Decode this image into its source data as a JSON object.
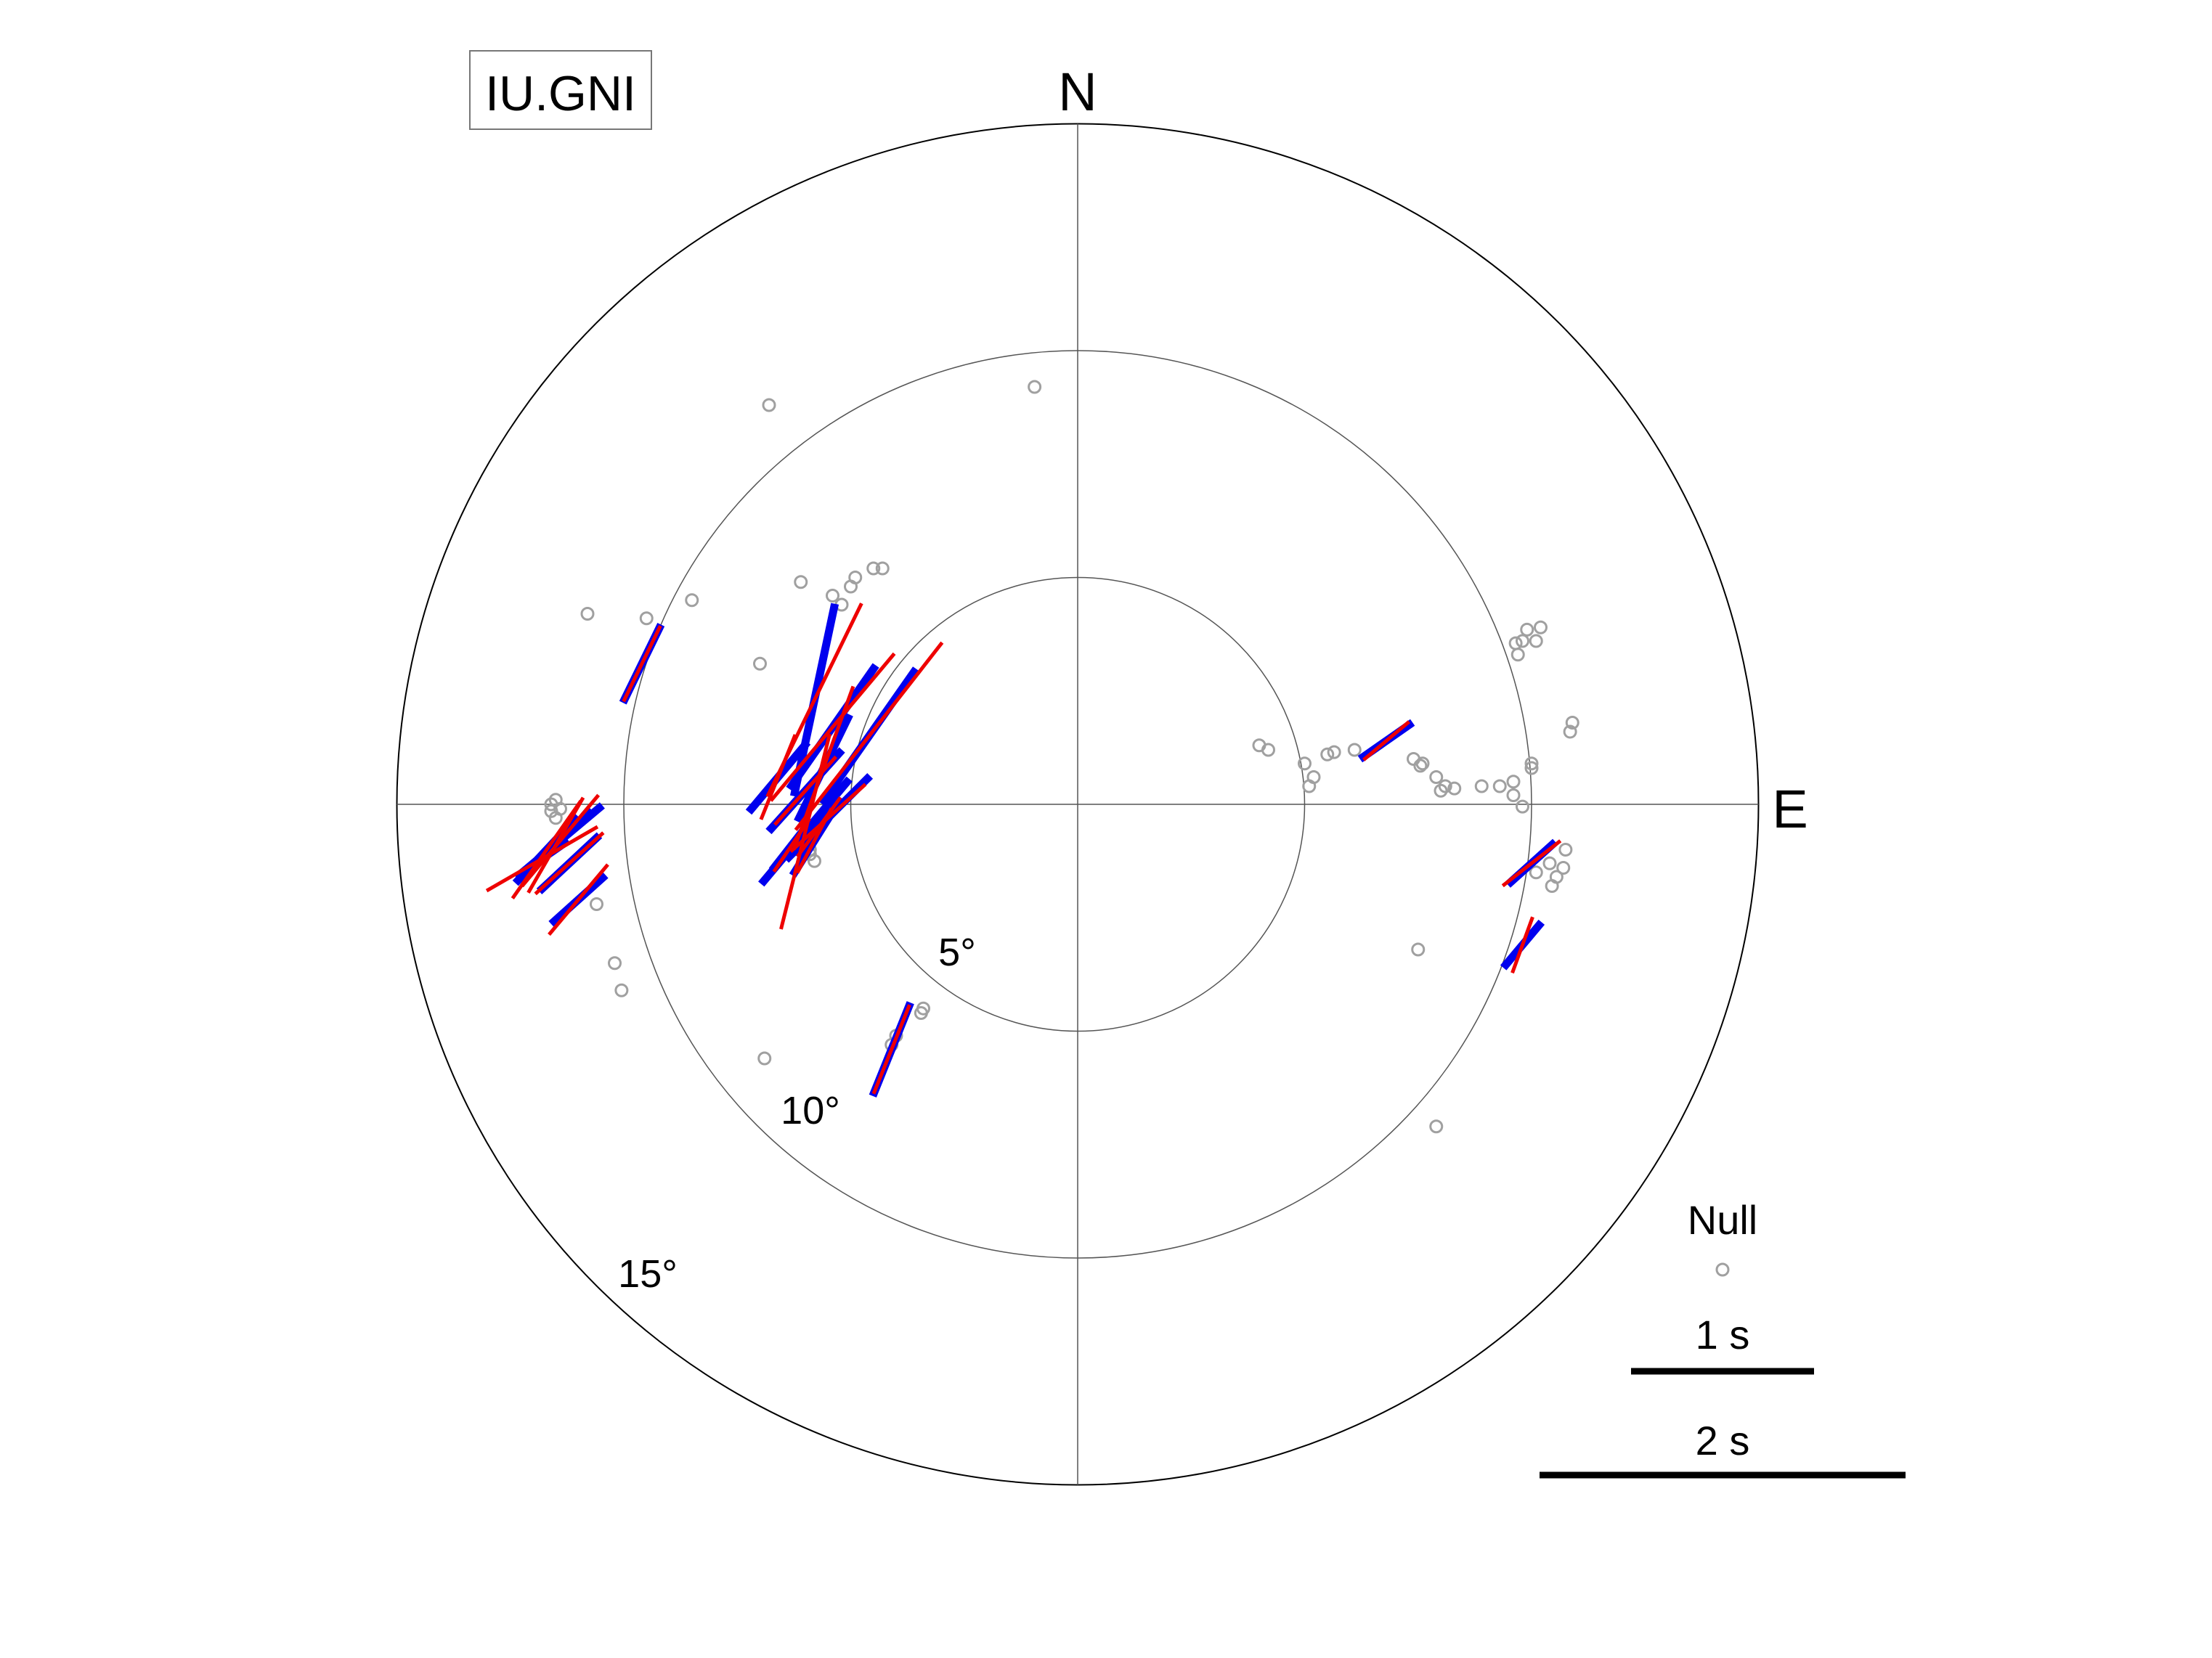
{
  "chart_data": {
    "type": "scatter",
    "title": "IU.GNI",
    "compass": {
      "north": "N",
      "east": "E"
    },
    "ring_labels": [
      "5°",
      "10°",
      "15°"
    ],
    "rings_deg": [
      5,
      10,
      15
    ],
    "legend": {
      "null_label": "Null",
      "scale_labels": [
        "1 s",
        "2 s"
      ],
      "scale_values_s": [
        1,
        2
      ]
    },
    "colors": {
      "null": "#a0a0a0",
      "measured": "#0000ee",
      "predicted": "#ee0000",
      "grid": "#555555"
    },
    "nulls": [
      [
        -6.8,
        8.8
      ],
      [
        -0.95,
        9.2
      ],
      [
        -10.8,
        4.2
      ],
      [
        -9.5,
        4.1
      ],
      [
        -8.5,
        4.5
      ],
      [
        -6.1,
        4.9
      ],
      [
        -5.4,
        4.6
      ],
      [
        -5.2,
        4.4
      ],
      [
        -5.0,
        4.8
      ],
      [
        -4.9,
        5.0
      ],
      [
        -4.5,
        5.2
      ],
      [
        -4.3,
        5.2
      ],
      [
        -7.0,
        3.1
      ],
      [
        -11.6,
        0.0
      ],
      [
        -11.6,
        -0.15
      ],
      [
        -11.5,
        -0.3
      ],
      [
        -11.4,
        -0.1
      ],
      [
        -11.5,
        0.1
      ],
      [
        -10.6,
        -2.2
      ],
      [
        -10.2,
        -3.5
      ],
      [
        -10.05,
        -4.1
      ],
      [
        -5.9,
        -1.1
      ],
      [
        -5.8,
        -1.25
      ],
      [
        -5.9,
        -1.0
      ],
      [
        -3.4,
        -4.5
      ],
      [
        -3.45,
        -4.6
      ],
      [
        -4.0,
        -5.1
      ],
      [
        -4.1,
        -5.3
      ],
      [
        -6.9,
        -5.6
      ],
      [
        4.0,
        1.3
      ],
      [
        4.2,
        1.2
      ],
      [
        5.0,
        0.9
      ],
      [
        5.2,
        0.6
      ],
      [
        5.5,
        1.1
      ],
      [
        5.65,
        1.15
      ],
      [
        6.1,
        1.2
      ],
      [
        5.1,
        0.4
      ],
      [
        7.4,
        1.0
      ],
      [
        7.55,
        0.85
      ],
      [
        7.6,
        0.9
      ],
      [
        7.9,
        0.6
      ],
      [
        8.0,
        0.3
      ],
      [
        8.1,
        0.4
      ],
      [
        8.3,
        0.35
      ],
      [
        8.9,
        0.4
      ],
      [
        9.3,
        0.4
      ],
      [
        9.6,
        0.2
      ],
      [
        9.8,
        -0.05
      ],
      [
        9.6,
        0.5
      ],
      [
        10.0,
        0.8
      ],
      [
        10.0,
        0.9
      ],
      [
        9.8,
        3.6
      ],
      [
        9.9,
        3.85
      ],
      [
        10.1,
        3.6
      ],
      [
        10.2,
        3.9
      ],
      [
        9.65,
        3.55
      ],
      [
        9.7,
        3.3
      ],
      [
        10.85,
        1.6
      ],
      [
        10.9,
        1.8
      ],
      [
        10.4,
        -1.3
      ],
      [
        10.55,
        -1.6
      ],
      [
        10.45,
        -1.8
      ],
      [
        10.7,
        -1.4
      ],
      [
        10.1,
        -1.5
      ],
      [
        10.75,
        -1.0
      ],
      [
        7.5,
        -3.2
      ],
      [
        7.9,
        -7.1
      ]
    ],
    "splits": [
      {
        "x": -9.6,
        "y": 3.1,
        "phi": 26,
        "dt": 0.95,
        "phi_pred": 26,
        "dt_pred": 0.92
      },
      {
        "x": -5.8,
        "y": 2.3,
        "phi": 12,
        "dt": 2.15,
        "phi_pred": 26,
        "dt_pred": 2.35
      },
      {
        "x": -5.4,
        "y": 1.7,
        "phi": 35,
        "dt": 1.65,
        "phi_pred": 40,
        "dt_pred": 2.1
      },
      {
        "x": -4.6,
        "y": 1.5,
        "phi": 35,
        "dt": 1.8,
        "phi_pred": 38,
        "dt_pred": 2.6
      },
      {
        "x": -5.6,
        "y": 0.8,
        "phi": 26,
        "dt": 1.3,
        "phi_pred": 20,
        "dt_pred": 1.9
      },
      {
        "x": -6.0,
        "y": -0.6,
        "phi": 40,
        "dt": 1.5,
        "phi_pred": 14,
        "dt_pred": 2.2
      },
      {
        "x": -6.6,
        "y": 0.6,
        "phi": 40,
        "dt": 1.0,
        "phi_pred": 22,
        "dt_pred": 1.0
      },
      {
        "x": -6.0,
        "y": 0.3,
        "phi": 42,
        "dt": 1.2,
        "phi_pred": 42,
        "dt_pred": 1.0
      },
      {
        "x": -5.5,
        "y": -0.3,
        "phi": 45,
        "dt": 1.3,
        "phi_pred": 48,
        "dt_pred": 1.1
      },
      {
        "x": -5.8,
        "y": -0.8,
        "phi": 32,
        "dt": 0.9,
        "phi_pred": 28,
        "dt_pred": 0.8
      },
      {
        "x": -6.3,
        "y": -0.9,
        "phi": 38,
        "dt": 0.7,
        "phi_pred": 34,
        "dt_pred": 0.7
      },
      {
        "x": -5.7,
        "y": -0.5,
        "phi": 33,
        "dt": 0.8,
        "phi_pred": 36,
        "dt_pred": 0.8
      },
      {
        "x": -11.5,
        "y": -0.9,
        "phi": 45,
        "dt": 1.1,
        "phi_pred": 30,
        "dt_pred": 1.2
      },
      {
        "x": -11.7,
        "y": -1.0,
        "phi": 43,
        "dt": 1.0,
        "phi_pred": 35,
        "dt_pred": 1.3
      },
      {
        "x": -11.4,
        "y": -0.8,
        "phi": 50,
        "dt": 1.2,
        "phi_pred": 40,
        "dt_pred": 1.3
      },
      {
        "x": -11.2,
        "y": -1.3,
        "phi": 47,
        "dt": 0.9,
        "phi_pred": 48,
        "dt_pred": 1.0
      },
      {
        "x": -11.8,
        "y": -1.2,
        "phi": 55,
        "dt": 0.7,
        "phi_pred": 60,
        "dt_pred": 1.4
      },
      {
        "x": -11.0,
        "y": -2.1,
        "phi": 48,
        "dt": 0.8,
        "phi_pred": 40,
        "dt_pred": 1.0
      },
      {
        "x": -4.1,
        "y": -5.4,
        "phi": 22,
        "dt": 1.1,
        "phi_pred": 22,
        "dt_pred": 1.05
      },
      {
        "x": 6.8,
        "y": 1.4,
        "phi": 55,
        "dt": 0.7,
        "phi_pred": 50,
        "dt_pred": 0.65
      },
      {
        "x": 10.0,
        "y": -1.3,
        "phi": 48,
        "dt": 0.7,
        "phi_pred": 52,
        "dt_pred": 0.8
      },
      {
        "x": 9.8,
        "y": -3.1,
        "phi": 40,
        "dt": 0.65,
        "phi_pred": 20,
        "dt_pred": 0.65
      }
    ]
  }
}
